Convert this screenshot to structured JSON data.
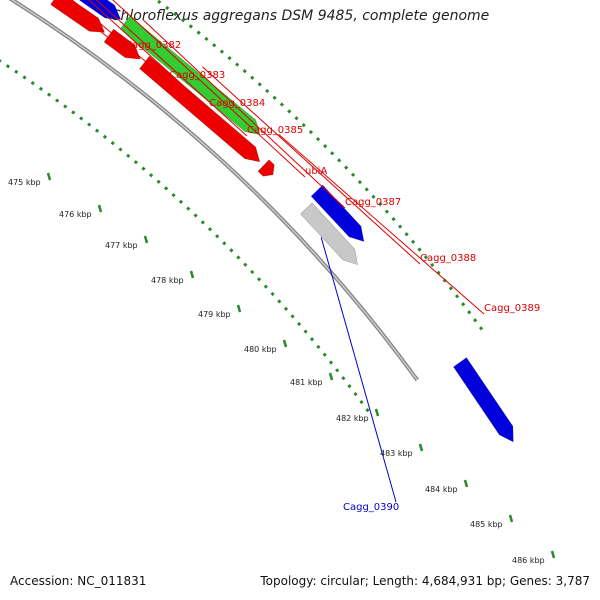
{
  "title": "Chloroflexus aggregans DSM 9485, complete genome",
  "footer": {
    "accession": "Accession: NC_011831",
    "topology": "Topology: circular; Length: 4,684,931 bp; Genes: 3,787"
  },
  "colors": {
    "background": "#ffffff",
    "backbone": "#888888",
    "tick_dots": "#2a8a2a",
    "label_red": "#dd0000",
    "label_blue": "#0000cc",
    "gene_red": "#ee0000",
    "gene_blue": "#0000dd",
    "gene_cyan": "#00dddd",
    "gene_green": "#33cc33",
    "gene_gray": "#c8c8c8",
    "gene_purple": "#7766dd"
  },
  "kbp_ticks": [
    "475 kbp",
    "476 kbp",
    "477 kbp",
    "478 kbp",
    "479 kbp",
    "480 kbp",
    "481 kbp",
    "482 kbp",
    "483 kbp",
    "484 kbp",
    "485 kbp",
    "486 kbp"
  ],
  "gene_labels": [
    {
      "text": "Cagg_0382",
      "color": "red"
    },
    {
      "text": "Cagg_0383",
      "color": "red"
    },
    {
      "text": "Cagg_0384",
      "color": "red"
    },
    {
      "text": "Cagg_0385",
      "color": "red"
    },
    {
      "text": "ubiA",
      "color": "red"
    },
    {
      "text": "Cagg_0387",
      "color": "red"
    },
    {
      "text": "Cagg_0388",
      "color": "red"
    },
    {
      "text": "Cagg_0389",
      "color": "red"
    },
    {
      "text": "Cagg_0390",
      "color": "blue"
    }
  ]
}
